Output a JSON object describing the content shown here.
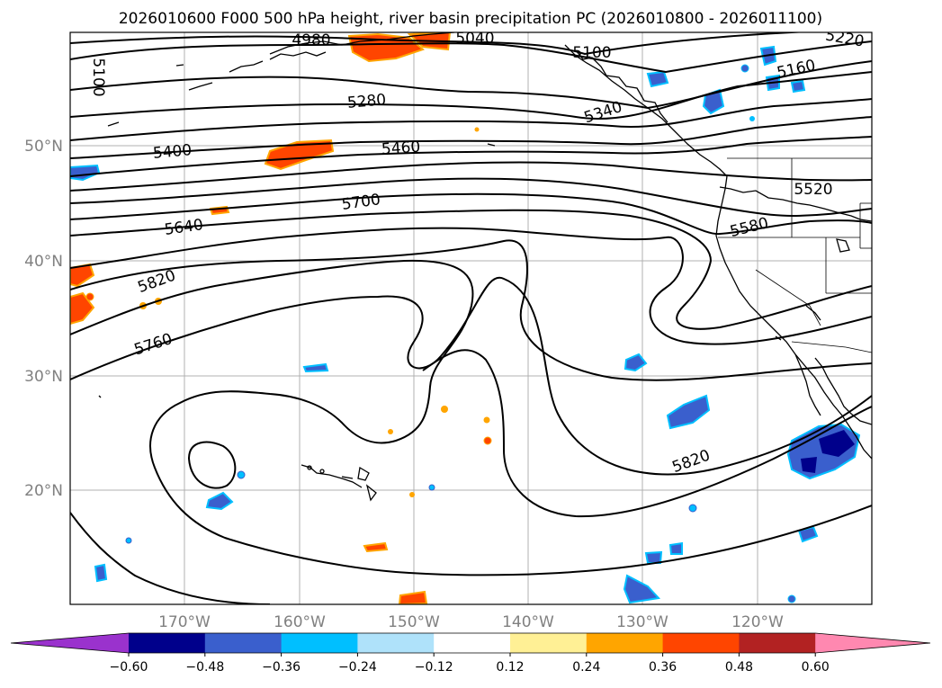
{
  "title": "2026010600 F000 500 hPa height, river basin precipitation PC (2026010800 - 2026011100)",
  "map": {
    "lon_labels": [
      "170°W",
      "160°W",
      "150°W",
      "140°W",
      "130°W",
      "120°W"
    ],
    "lat_labels": [
      "50°N",
      "40°N",
      "30°N",
      "20°N"
    ],
    "gridline_color": "#b0b0b0",
    "land_outline_color": "#000000"
  },
  "contours": {
    "labels": [
      "5100",
      "4980",
      "5040",
      "5100",
      "5220",
      "5160",
      "5280",
      "5340",
      "5400",
      "5460",
      "5520",
      "5580",
      "5640",
      "5700",
      "5820",
      "5760",
      "5820"
    ]
  },
  "shading": {
    "positive_colors": [
      "#ffec8b",
      "#ffa500",
      "#ff4500",
      "#b22222",
      "#ff88b0"
    ],
    "negative_colors": [
      "#00bfff",
      "#3a5fcd",
      "#00008b",
      "#9932cc"
    ]
  },
  "colorbar": {
    "ticks": [
      "−0.60",
      "−0.48",
      "−0.36",
      "−0.24",
      "−0.12",
      "0.12",
      "0.24",
      "0.36",
      "0.48",
      "0.60"
    ],
    "colors": [
      "#9a32cd",
      "#00008b",
      "#3a5fcd",
      "#00bfff",
      "#afe2fa",
      "#ffffff",
      "#fff095",
      "#ffa500",
      "#ff4500",
      "#b22222",
      "#ff88b0"
    ]
  }
}
